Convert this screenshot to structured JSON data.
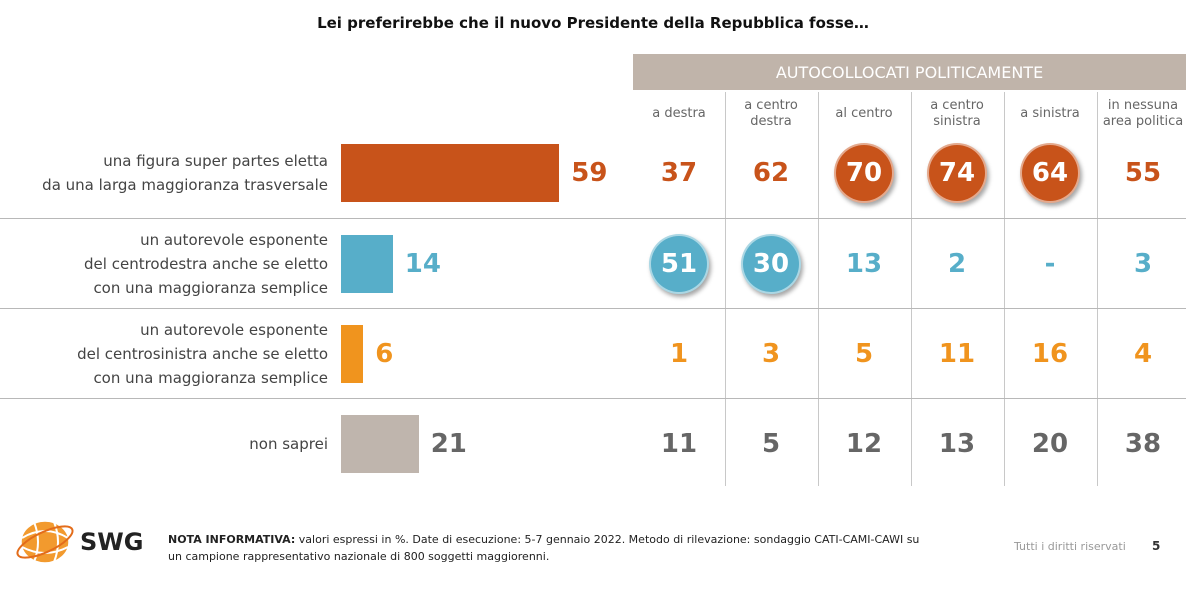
{
  "title": "Lei preferirebbe che il nuovo Presidente della Repubblica fosse…",
  "segment_header": "AUTOCOLLOCATI POLITICAMENTE",
  "columns": [
    [
      "a destra"
    ],
    [
      "a centro",
      "destra"
    ],
    [
      "al centro"
    ],
    [
      "a centro",
      "sinistra"
    ],
    [
      "a sinistra"
    ],
    [
      "in nessuna",
      "area politica"
    ]
  ],
  "colors": {
    "row0": "#c8531a",
    "row1": "#57aec9",
    "row2": "#f0941e",
    "row3": "#bfb5ad",
    "row3_text": "#666666"
  },
  "rows": [
    {
      "label": [
        "una figura super partes eletta",
        "da una larga maggioranza trasversale"
      ],
      "total": "59",
      "values": [
        "37",
        "62",
        "70",
        "74",
        "64",
        "55"
      ],
      "circled": [
        false,
        false,
        true,
        true,
        true,
        false
      ]
    },
    {
      "label": [
        "un autorevole esponente",
        "del centrodestra anche se eletto",
        "con una maggioranza semplice"
      ],
      "total": "14",
      "values": [
        "51",
        "30",
        "13",
        "2",
        "-",
        "3"
      ],
      "circled": [
        true,
        true,
        false,
        false,
        false,
        false
      ]
    },
    {
      "label": [
        "un autorevole esponente",
        "del centrosinistra anche se eletto",
        "con una maggioranza semplice"
      ],
      "total": "6",
      "values": [
        "1",
        "3",
        "5",
        "11",
        "16",
        "4"
      ],
      "circled": [
        false,
        false,
        false,
        false,
        false,
        false
      ]
    },
    {
      "label": [
        "non saprei"
      ],
      "total": "21",
      "values": [
        "11",
        "5",
        "12",
        "13",
        "20",
        "38"
      ],
      "circled": [
        false,
        false,
        false,
        false,
        false,
        false
      ]
    }
  ],
  "chart_data": {
    "type": "bar",
    "title": "Lei preferirebbe che il nuovo Presidente della Repubblica fosse…",
    "orientation": "horizontal",
    "categories": [
      "una figura super partes eletta da una larga maggioranza trasversale",
      "un autorevole esponente del centrodestra anche se eletto con una maggioranza semplice",
      "un autorevole esponente del centrosinistra anche se eletto con una maggioranza semplice",
      "non saprei"
    ],
    "values": [
      59,
      14,
      6,
      21
    ],
    "breakdown_header": "AUTOCOLLOCATI POLITICAMENTE",
    "breakdown_columns": [
      "a destra",
      "a centro destra",
      "al centro",
      "a centro sinistra",
      "a sinistra",
      "in nessuna area politica"
    ],
    "breakdown_values": [
      [
        37,
        62,
        70,
        74,
        64,
        55
      ],
      [
        51,
        30,
        13,
        2,
        null,
        3
      ],
      [
        1,
        3,
        5,
        11,
        16,
        4
      ],
      [
        11,
        5,
        12,
        13,
        20,
        38
      ]
    ]
  },
  "logo": {
    "text": "SWG",
    "icon": "swg-globe-logo"
  },
  "note": {
    "label": "NOTA INFORMATIVA:",
    "text": "valori espressi in %. Date di esecuzione: 5-7 gennaio 2022. Metodo di rilevazione: sondaggio CATI-CAMI-CAWI su un campione rappresentativo nazionale di 800 soggetti maggiorenni."
  },
  "rights": "Tutti i diritti riservati",
  "page_number": "5"
}
